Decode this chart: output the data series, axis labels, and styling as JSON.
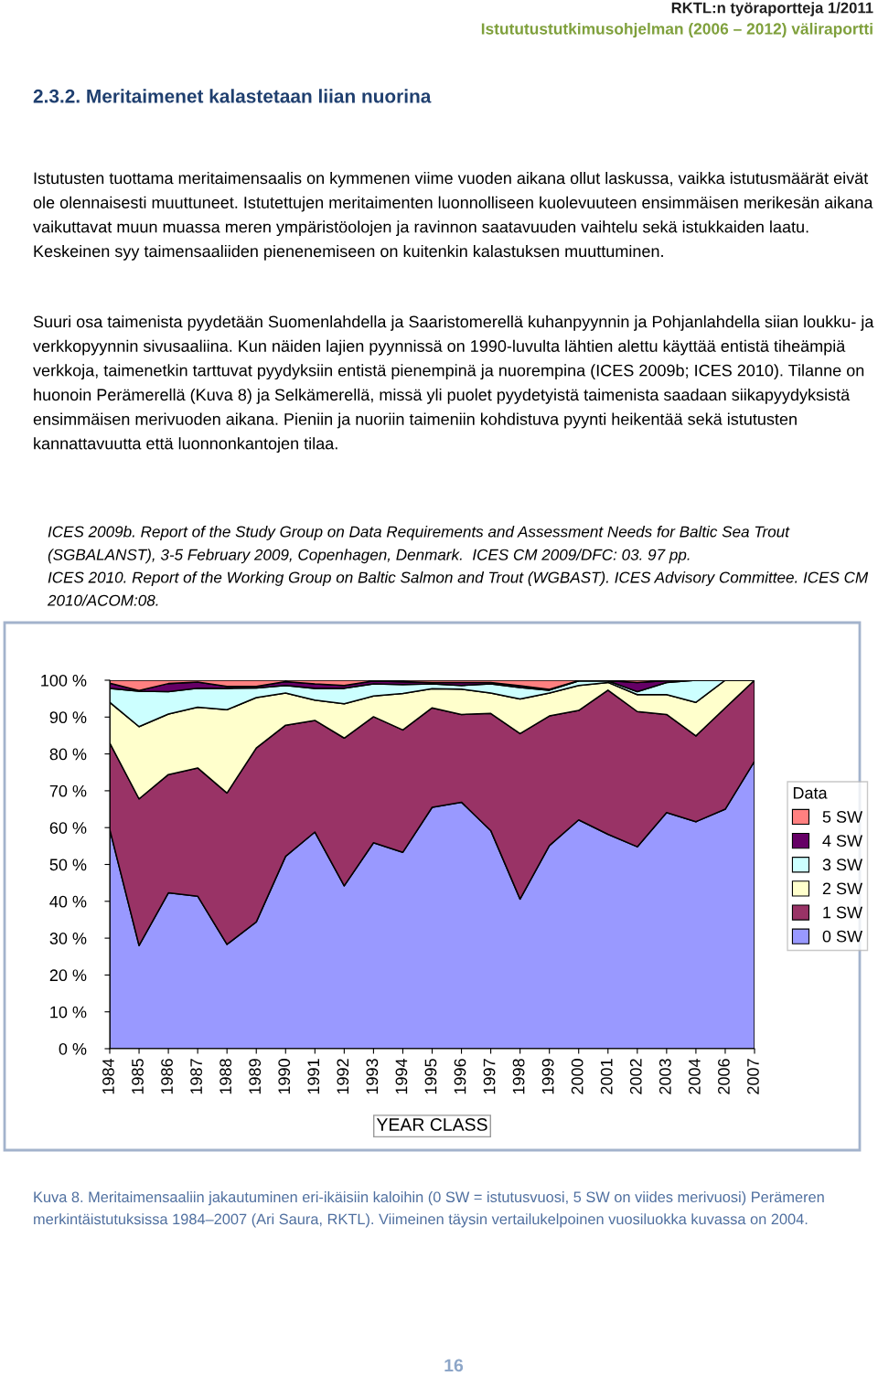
{
  "chart_data": {
    "type": "area",
    "stacked": true,
    "title": "2.3.2. Meritaimenet kalastetaan liian nuorina",
    "xlabel": "YEAR CLASS",
    "legend_title": "Data",
    "legend": "right",
    "categories": [
      "1984",
      "1985",
      "1986",
      "1987",
      "1988",
      "1989",
      "1990",
      "1991",
      "1992",
      "1993",
      "1994",
      "1995",
      "1996",
      "1997",
      "1998",
      "1999",
      "2000",
      "2001",
      "2002",
      "2003",
      "2004",
      "2006",
      "2007"
    ],
    "ylim": [
      0,
      100
    ],
    "yticks": [
      {
        "value": 0,
        "label": "0 %"
      },
      {
        "value": 10,
        "label": "10 %"
      },
      {
        "value": 20,
        "label": "20 %"
      },
      {
        "value": 30,
        "label": "30 %"
      },
      {
        "value": 40,
        "label": "40 %"
      },
      {
        "value": 50,
        "label": "50 %"
      },
      {
        "value": 60,
        "label": "60 %"
      },
      {
        "value": 70,
        "label": "70 %"
      },
      {
        "value": 80,
        "label": "80 %"
      },
      {
        "value": 90,
        "label": "90 %"
      },
      {
        "value": 100,
        "label": "100 %"
      }
    ],
    "series": [
      {
        "name": "0 SW",
        "color": "#9999ff",
        "values": [
          59.5,
          28,
          42.3,
          41.4,
          28.3,
          34.4,
          52.2,
          58.8,
          44.2,
          55.9,
          53.3,
          65.5,
          66.9,
          59.2,
          40.6,
          55.1,
          62.1,
          58.2,
          54.8,
          64.1,
          61.6,
          65.0,
          78.0
        ]
      },
      {
        "name": "1 SW",
        "color": "#993366",
        "values": [
          23.5,
          39.8,
          32.1,
          34.8,
          41.1,
          47.2,
          35.6,
          30.3,
          40.1,
          34.2,
          33.2,
          27.0,
          23.8,
          31.8,
          44.9,
          35.2,
          29.7,
          39.1,
          36.7,
          26.6,
          23.3,
          27.5,
          22.0
        ]
      },
      {
        "name": "2 SW",
        "color": "#ffffcc",
        "values": [
          11.0,
          19.6,
          16.4,
          16.5,
          22.6,
          13.7,
          8.7,
          5.5,
          9.3,
          5.6,
          9.9,
          5.2,
          6.9,
          5.5,
          9.4,
          6.2,
          6.8,
          2.1,
          4.6,
          5.4,
          9.1,
          7.5,
          0
        ]
      },
      {
        "name": "3 SW",
        "color": "#ccffff",
        "values": [
          3.8,
          9.6,
          6.1,
          5.1,
          5.8,
          2.6,
          2.1,
          3.2,
          4.2,
          3.3,
          2.4,
          1.3,
          1.0,
          2.5,
          3.1,
          0.8,
          1.2,
          0.4,
          0.8,
          3.3,
          6.0,
          0,
          0
        ]
      },
      {
        "name": "4 SW",
        "color": "#660066",
        "values": [
          1.4,
          0.2,
          2.2,
          1.7,
          0.5,
          0.4,
          1.0,
          1.2,
          0.8,
          0.8,
          0.8,
          0.4,
          0.8,
          0.4,
          0.5,
          0.2,
          0.1,
          0.1,
          2.5,
          0.5,
          0,
          0,
          0
        ]
      },
      {
        "name": "5 SW",
        "color": "#ff8080",
        "values": [
          0.8,
          2.8,
          0.9,
          0.5,
          1.7,
          1.7,
          0.4,
          1.0,
          1.4,
          0.2,
          0.4,
          0.6,
          0.6,
          0.6,
          1.5,
          2.5,
          0.1,
          0.1,
          0.6,
          0.1,
          0,
          0,
          0
        ]
      }
    ],
    "annotations": [
      "RKTL:n työraportteja 1/2011",
      "Istututustutkimusohjelman (2006 – 2012) väliraportti",
      "Istutusten tuottama meritaimensaalis on kymmenen viime vuoden aikana ollut laskussa, vaikka istutusmäärät eivät ole olennaisesti muuttuneet. Istutettujen meritaimenten luonnolliseen kuolevuuteen ensimmäisen merikesän aikana vaikuttavat muun muassa meren ympäristöolojen ja ravinnon saatavuuden vaihtelu sekä istukkaiden laatu. Keskeinen syy taimensaaliiden pienenemiseen on kuitenkin kalastuksen muuttuminen.",
      "Suuri osa taimenista pyydetään Suomenlahdella ja Saaristomerellä kuhanpyynnin ja Pohjanlahdella siian loukku- ja verkkopyynnin sivusaaliina. Kun näiden lajien pyynnissä on 1990-luvulta lähtien alettu käyttää entistä tiheämpiä verkkoja, taimenetkin tarttuvat pyydyksiin entistä pienempinä ja nuorempina (ICES 2009b; ICES 2010). Tilanne on huonoin Perämerellä (Kuva 8) ja Selkämerellä, missä yli puolet pyydetyistä taimenista saadaan siikapyydyksistä ensimmäisen merivuoden aikana. Pieniin ja nuoriin taimeniin kohdistuva pyynti heikentää sekä istutusten kannattavuutta että luonnonkantojen tilaa.",
      "ICES 2009b. Report of the Study Group on Data Requirements and Assessment Needs for Baltic Sea Trout (SGBALANST), 3-5 February 2009, Copenhagen, Denmark.  ICES CM 2009/DFC: 03. 97 pp.",
      "ICES 2010. Report of the Working Group on Baltic Salmon and Trout (WGBAST). ICES Advisory Committee. ICES CM 2010/ACOM:08.",
      "Kuva 8. Meritaimensaaliin jakautuminen eri-ikäisiin kaloihin (0 SW = istutusvuosi, 5 SW on viides merivuosi) Perämeren merkintäistutuksissa 1984–2007 (Ari Saura, RKTL). Viimeinen täysin vertailukelpoinen vuosiluokka kuvassa on 2004.",
      "16"
    ]
  }
}
